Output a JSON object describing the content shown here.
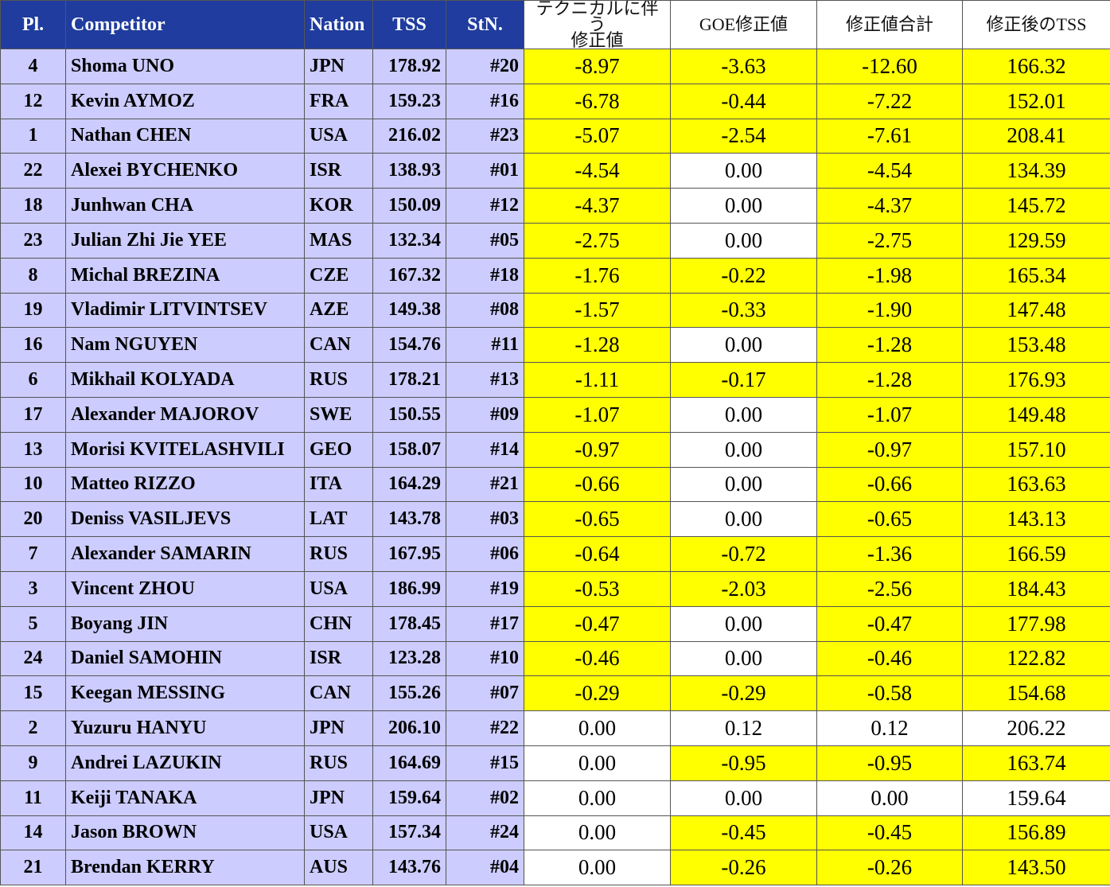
{
  "table": {
    "header": [
      "Pl.",
      "Competitor",
      "Nation",
      "TSS",
      "StN.",
      "テクニカルに伴う\n修正値",
      "GOE修正値",
      "修正値合計",
      "修正後のTSS"
    ],
    "rows": [
      [
        "4",
        "Shoma UNO",
        "JPN",
        "178.92",
        "#20",
        "-8.97",
        "-3.63",
        "-12.60",
        "166.32"
      ],
      [
        "12",
        "Kevin AYMOZ",
        "FRA",
        "159.23",
        "#16",
        "-6.78",
        "-0.44",
        "-7.22",
        "152.01"
      ],
      [
        "1",
        "Nathan CHEN",
        "USA",
        "216.02",
        "#23",
        "-5.07",
        "-2.54",
        "-7.61",
        "208.41"
      ],
      [
        "22",
        "Alexei BYCHENKO",
        "ISR",
        "138.93",
        "#01",
        "-4.54",
        "0.00",
        "-4.54",
        "134.39"
      ],
      [
        "18",
        "Junhwan CHA",
        "KOR",
        "150.09",
        "#12",
        "-4.37",
        "0.00",
        "-4.37",
        "145.72"
      ],
      [
        "23",
        "Julian Zhi Jie YEE",
        "MAS",
        "132.34",
        "#05",
        "-2.75",
        "0.00",
        "-2.75",
        "129.59"
      ],
      [
        "8",
        "Michal BREZINA",
        "CZE",
        "167.32",
        "#18",
        "-1.76",
        "-0.22",
        "-1.98",
        "165.34"
      ],
      [
        "19",
        "Vladimir LITVINTSEV",
        "AZE",
        "149.38",
        "#08",
        "-1.57",
        "-0.33",
        "-1.90",
        "147.48"
      ],
      [
        "16",
        "Nam NGUYEN",
        "CAN",
        "154.76",
        "#11",
        "-1.28",
        "0.00",
        "-1.28",
        "153.48"
      ],
      [
        "6",
        "Mikhail KOLYADA",
        "RUS",
        "178.21",
        "#13",
        "-1.11",
        "-0.17",
        "-1.28",
        "176.93"
      ],
      [
        "17",
        "Alexander MAJOROV",
        "SWE",
        "150.55",
        "#09",
        "-1.07",
        "0.00",
        "-1.07",
        "149.48"
      ],
      [
        "13",
        "Morisi KVITELASHVILI",
        "GEO",
        "158.07",
        "#14",
        "-0.97",
        "0.00",
        "-0.97",
        "157.10"
      ],
      [
        "10",
        "Matteo RIZZO",
        "ITA",
        "164.29",
        "#21",
        "-0.66",
        "0.00",
        "-0.66",
        "163.63"
      ],
      [
        "20",
        "Deniss VASILJEVS",
        "LAT",
        "143.78",
        "#03",
        "-0.65",
        "0.00",
        "-0.65",
        "143.13"
      ],
      [
        "7",
        "Alexander SAMARIN",
        "RUS",
        "167.95",
        "#06",
        "-0.64",
        "-0.72",
        "-1.36",
        "166.59"
      ],
      [
        "3",
        "Vincent ZHOU",
        "USA",
        "186.99",
        "#19",
        "-0.53",
        "-2.03",
        "-2.56",
        "184.43"
      ],
      [
        "5",
        "Boyang JIN",
        "CHN",
        "178.45",
        "#17",
        "-0.47",
        "0.00",
        "-0.47",
        "177.98"
      ],
      [
        "24",
        "Daniel SAMOHIN",
        "ISR",
        "123.28",
        "#10",
        "-0.46",
        "0.00",
        "-0.46",
        "122.82"
      ],
      [
        "15",
        "Keegan MESSING",
        "CAN",
        "155.26",
        "#07",
        "-0.29",
        "-0.29",
        "-0.58",
        "154.68"
      ],
      [
        "2",
        "Yuzuru HANYU",
        "JPN",
        "206.10",
        "#22",
        "0.00",
        "0.12",
        "0.12",
        "206.22"
      ],
      [
        "9",
        "Andrei LAZUKIN",
        "RUS",
        "164.69",
        "#15",
        "0.00",
        "-0.95",
        "-0.95",
        "163.74"
      ],
      [
        "11",
        "Keiji TANAKA",
        "JPN",
        "159.64",
        "#02",
        "0.00",
        "0.00",
        "0.00",
        "159.64"
      ],
      [
        "14",
        "Jason BROWN",
        "USA",
        "157.34",
        "#24",
        "0.00",
        "-0.45",
        "-0.45",
        "156.89"
      ],
      [
        "21",
        "Brendan KERRY",
        "AUS",
        "143.76",
        "#04",
        "0.00",
        "-0.26",
        "-0.26",
        "143.50"
      ]
    ]
  }
}
